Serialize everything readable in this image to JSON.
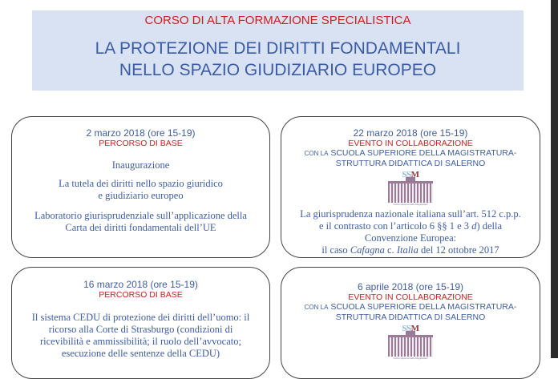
{
  "header": {
    "kicker": "CORSO DI ALTA FORMAZIONE SPECIALISTICA",
    "title_line1": "LA PROTEZIONE DEI DIRITTI FONDAMENTALI",
    "title_line2": "NELLO SPAZIO GIUDIZIARIO EUROPEO"
  },
  "colors": {
    "header_bg": "#d9e2f3",
    "accent_red": "#d01c1c",
    "text_blue": "#3a5ba6"
  },
  "collab": {
    "prefix": "CON LA",
    "line1": "SCUOLA SUPERIORE DELLA MAGISTRATURA-",
    "line2": "STRUTTURA DIDATTICA DI SALERNO",
    "logo_text_ss": "SS",
    "logo_text_m": "M",
    "logo_caption": "Scuola Superiore della Magistratura"
  },
  "events": [
    {
      "date": "2 marzo 2018 (ore 15-19)",
      "type": "PERCORSO DI BASE",
      "paras": [
        "Inaugurazione",
        "La tutela dei diritti nello spazio giuridico\ne giudiziario europeo",
        "Laboratorio giurisprudenziale sull’applicazione della\nCarta dei diritti fondamentali dell’UE"
      ]
    },
    {
      "date": "22 marzo 2018 (ore 15-19)",
      "type": "EVENTO IN COLLABORAZIONE",
      "p_a": "La giurisprudenza nazionale italiana sull’art. 512 c.p.p.\ne il contrasto con l’articolo 6 §§ 1 e 3 ",
      "p_a_it": "d",
      "p_b": ") della\nConvenzione Europea:\nil caso ",
      "p_b_it1": "Cafagna",
      "p_c": " c. ",
      "p_c_it": "Italia",
      "p_d": " del 12 ottobre 2017"
    },
    {
      "date": "16 marzo 2018 (ore 15-19)",
      "type": "PERCORSO DI BASE",
      "paras": [
        "Il sistema CEDU di protezione dei diritti dell’uomo: il\nricorso alla Corte di Strasburgo (condizioni di\nricevibilità e ammissibilità; il ruolo dell’avvocato;\nesecuzione delle sentenze della CEDU)"
      ]
    },
    {
      "date": "6 aprile 2018 (ore 15-19)",
      "type": "EVENTO IN COLLABORAZIONE"
    }
  ]
}
